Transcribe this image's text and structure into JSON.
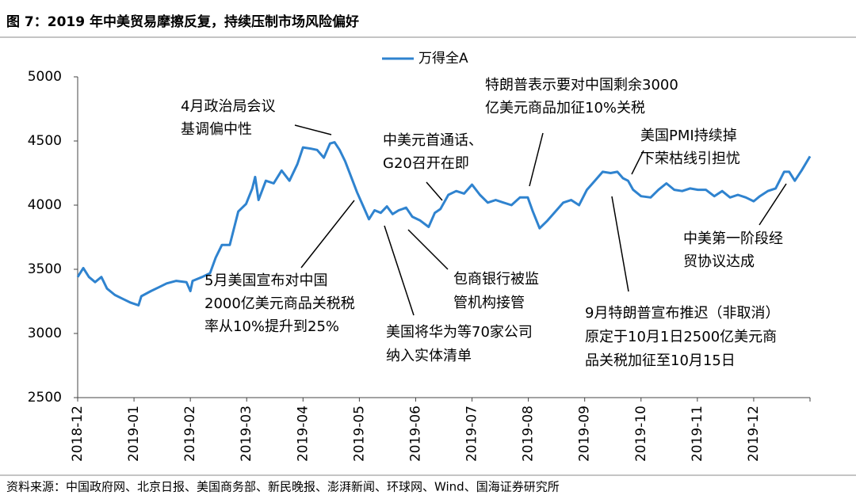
{
  "chart_data": {
    "type": "line",
    "title": "图 7：2019 年中美贸易摩擦反复，持续压制市场风险偏好",
    "source": "资料来源：中国政府网、北京日报、美国商务部、新民晚报、澎湃新闻、环球网、Wind、国海证券研究所",
    "xlim": [
      0,
      13
    ],
    "xticks": [
      {
        "value": 0,
        "label": "2018-12"
      },
      {
        "value": 1,
        "label": "2019-01"
      },
      {
        "value": 2,
        "label": "2019-02"
      },
      {
        "value": 3,
        "label": "2019-03"
      },
      {
        "value": 4,
        "label": "2019-04"
      },
      {
        "value": 5,
        "label": "2019-05"
      },
      {
        "value": 6,
        "label": "2019-06"
      },
      {
        "value": 7,
        "label": "2019-07"
      },
      {
        "value": 8,
        "label": "2019-08"
      },
      {
        "value": 9,
        "label": "2019-09"
      },
      {
        "value": 10,
        "label": "2019-10"
      },
      {
        "value": 11,
        "label": "2019-11"
      },
      {
        "value": 12,
        "label": "2019-12"
      }
    ],
    "ylim": [
      2500,
      5000
    ],
    "yticks": [
      2500,
      3000,
      3500,
      4000,
      4500,
      5000
    ],
    "legend": "top",
    "x": [
      0,
      0.1,
      0.2,
      0.31,
      0.42,
      0.52,
      0.66,
      0.8,
      0.94,
      1.08,
      1.13,
      1.3,
      1.44,
      1.58,
      1.75,
      1.93,
      2.0,
      2.04,
      2.21,
      2.35,
      2.45,
      2.56,
      2.7,
      2.85,
      2.99,
      3.1,
      3.15,
      3.21,
      3.34,
      3.48,
      3.62,
      3.76,
      3.9,
      4.0,
      4.14,
      4.25,
      4.37,
      4.48,
      4.56,
      4.65,
      4.75,
      4.82,
      4.96,
      5.07,
      5.17,
      5.27,
      5.38,
      5.49,
      5.59,
      5.7,
      5.83,
      5.94,
      6.08,
      6.23,
      6.34,
      6.44,
      6.58,
      6.72,
      6.86,
      7.0,
      7.14,
      7.28,
      7.42,
      7.56,
      7.7,
      7.85,
      7.99,
      8.08,
      8.2,
      8.34,
      8.48,
      8.62,
      8.76,
      8.9,
      9.04,
      9.18,
      9.32,
      9.46,
      9.58,
      9.68,
      9.77,
      9.86,
      10.0,
      10.17,
      10.31,
      10.45,
      10.59,
      10.73,
      10.87,
      11.01,
      11.15,
      11.3,
      11.44,
      11.58,
      11.72,
      11.86,
      12.0,
      12.11,
      12.25,
      12.39,
      12.54,
      12.63,
      12.73,
      12.85,
      13
    ],
    "series": [
      {
        "name": "万得全A",
        "color": "#2f83cf",
        "values": [
          3440,
          3510,
          3440,
          3400,
          3440,
          3350,
          3300,
          3270,
          3240,
          3220,
          3290,
          3330,
          3360,
          3390,
          3410,
          3400,
          3330,
          3410,
          3440,
          3470,
          3590,
          3690,
          3690,
          3950,
          4010,
          4130,
          4220,
          4040,
          4190,
          4170,
          4270,
          4190,
          4320,
          4450,
          4440,
          4430,
          4370,
          4480,
          4490,
          4430,
          4340,
          4260,
          4100,
          3990,
          3890,
          3960,
          3940,
          3990,
          3930,
          3960,
          3980,
          3910,
          3880,
          3830,
          3940,
          3970,
          4080,
          4110,
          4090,
          4160,
          4080,
          4020,
          4040,
          4020,
          4000,
          4060,
          4060,
          3950,
          3820,
          3880,
          3950,
          4020,
          4040,
          4000,
          4120,
          4190,
          4260,
          4250,
          4260,
          4210,
          4190,
          4120,
          4070,
          4060,
          4120,
          4170,
          4120,
          4110,
          4130,
          4120,
          4120,
          4070,
          4110,
          4060,
          4080,
          4060,
          4030,
          4070,
          4110,
          4130,
          4260,
          4260,
          4190,
          4270,
          4380
        ]
      }
    ],
    "annotations": [
      [
        "4月政治局会议",
        "基调偏中性"
      ],
      [
        "5月美国宣布对中国",
        "2000亿美元商品关税税",
        "率从10%提升到25%"
      ],
      [
        "中美元首通话、",
        "G20召开在即"
      ],
      [
        "特朗普表示要对中国剩余3000",
        "亿美元商品加征10%关税"
      ],
      [
        "美国PMI持续掉",
        "下荣枯线引担忧"
      ],
      [
        "中美第一阶段经",
        "贸协议达成"
      ],
      [
        "包商银行被监",
        "管机构接管"
      ],
      [
        "美国将华为等70家公司",
        "纳入实体清单"
      ],
      [
        "9月特朗普宣布推迟（非取消）",
        "原定于10月1日2500亿美元商",
        "品关税加征至10月15日"
      ]
    ]
  }
}
